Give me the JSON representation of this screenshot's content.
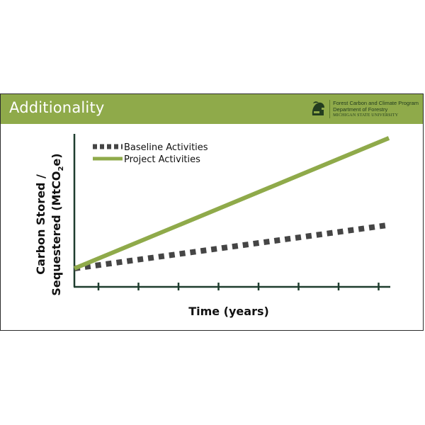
{
  "slide": {
    "title": "Additionality",
    "logo": {
      "icon": "spartan-helmet-icon",
      "line1": "Forest Carbon and Climate Program",
      "line2": "Department of Forestry",
      "line3": "MICHIGAN STATE UNIVERSITY"
    }
  },
  "colors": {
    "title_bar": "#8faa4a",
    "project_line": "#8faa4a",
    "baseline_line": "#454545",
    "axis": "#1e3d2e",
    "text": "#111111"
  },
  "chart_data": {
    "type": "line",
    "title": "",
    "xlabel": "Time (years)",
    "ylabel_line1": "Carbon Stored /",
    "ylabel_line2_pre": "Sequestered (MtCO",
    "ylabel_line2_sub": "2",
    "ylabel_line2_post": "e)",
    "xlim": [
      0,
      8
    ],
    "ylim": [
      0,
      10
    ],
    "x_ticks": [
      1,
      2,
      3,
      4,
      5,
      6,
      7,
      8
    ],
    "x_tick_labels": false,
    "y_tick_labels": false,
    "legend_position": "top-left",
    "series": [
      {
        "name": "Baseline Activities",
        "style": "dotted",
        "color": "#454545",
        "x": [
          0,
          8
        ],
        "y": [
          1.25,
          4.2
        ]
      },
      {
        "name": "Project Activities",
        "style": "solid",
        "color": "#8faa4a",
        "x": [
          0,
          8
        ],
        "y": [
          1.25,
          10.1
        ]
      }
    ]
  }
}
